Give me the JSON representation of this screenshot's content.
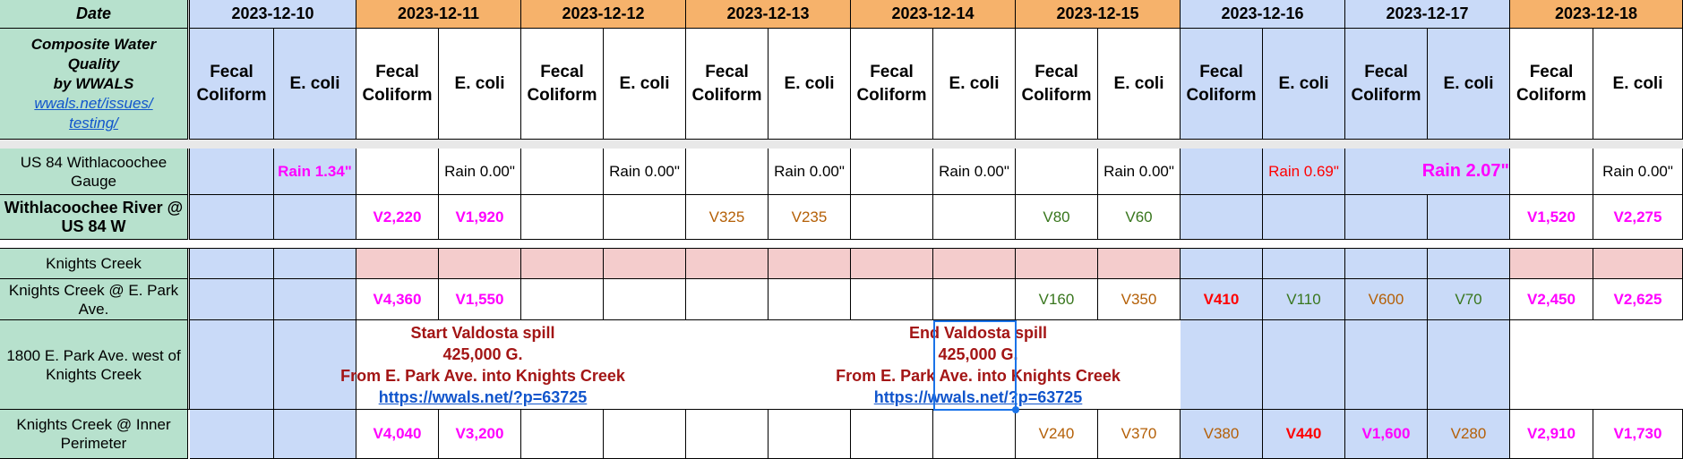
{
  "header": {
    "date_label": "Date",
    "dates": [
      "2023-12-10",
      "2023-12-11",
      "2023-12-12",
      "2023-12-13",
      "2023-12-14",
      "2023-12-15",
      "2023-12-16",
      "2023-12-17",
      "2023-12-18"
    ],
    "title_line1": "Composite Water",
    "title_line2": "Quality",
    "title_line3": "by WWALS",
    "link_line1": "wwals.net/issues/",
    "link_line2": "testing/",
    "param_fecal": "Fecal Coliform",
    "param_ecoli": "E. coli"
  },
  "rows": {
    "gauge": {
      "label": "US 84 Withlacoochee Gauge",
      "rain": [
        "Rain 1.34\"",
        "Rain 0.00\"",
        "Rain 0.00\"",
        "Rain 0.00\"",
        "Rain 0.00\"",
        "Rain 0.00\"",
        "Rain 0.69\"",
        "Rain 2.07\"",
        "Rain 0.00\""
      ]
    },
    "river": {
      "label": "Withlacoochee River @ US 84 W",
      "values": [
        "",
        "",
        "V2,220",
        "V1,920",
        "",
        "",
        "V325",
        "V235",
        "",
        "",
        "V80",
        "V60",
        "",
        "",
        "",
        "",
        "V1,520",
        "V2,275"
      ]
    },
    "knights_header": {
      "label": "Knights Creek"
    },
    "epark": {
      "label": "Knights Creek @ E. Park Ave.",
      "values": [
        "",
        "",
        "V4,360",
        "V1,550",
        "",
        "",
        "",
        "",
        "",
        "",
        "V160",
        "V350",
        "V410",
        "V110",
        "V600",
        "V70",
        "V2,450",
        "V2,625"
      ]
    },
    "spill_site": {
      "label": "1800 E. Park Ave. west of Knights Creek",
      "start": {
        "line1": "Start Valdosta spill",
        "line2": "425,000 G.",
        "line3": "From E. Park Ave. into Knights Creek",
        "link": "https://wwals.net/?p=63725"
      },
      "end": {
        "line1": "End Valdosta spill",
        "line2": "425,000 G.",
        "line3": "From E. Park Ave. into Knights Creek",
        "link": "https://wwals.net/?p=63725"
      }
    },
    "inner": {
      "label": "Knights Creek @ Inner Perimeter",
      "values": [
        "",
        "",
        "V4,040",
        "V3,200",
        "",
        "",
        "",
        "",
        "",
        "",
        "V240",
        "V370",
        "V380",
        "V440",
        "V1,600",
        "V280",
        "V2,910",
        "V1,730"
      ]
    }
  },
  "colors": {
    "label_bg": "#b7e1cd",
    "date_orange": "#f6b26b",
    "date_blue": "#c9daf8",
    "weekend_blue": "#c9daf8",
    "knights_pink": "#f4cccc",
    "magenta": "#ff00ff",
    "orange": "#b45f06",
    "green": "#38761d",
    "red": "#ff0000",
    "spill_red": "#a31515"
  }
}
